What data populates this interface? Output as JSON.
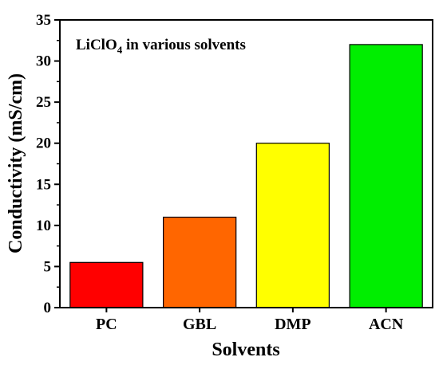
{
  "chart_data": {
    "type": "bar",
    "categories": [
      "PC",
      "GBL",
      "DMP",
      "ACN"
    ],
    "values": [
      5.5,
      11,
      20,
      32
    ],
    "colors": [
      "#ff0000",
      "#ff6600",
      "#ffff00",
      "#00ee00"
    ],
    "bar_edge_color": "#000000",
    "title": "",
    "annotation": {
      "text_main": "LiClO",
      "text_sub": "4",
      "text_rest": " in various solvents"
    },
    "xlabel": "Solvents",
    "ylabel": "Conductivity (mS/cm)",
    "ylim": [
      0,
      35
    ],
    "yticks": [
      "0",
      "5",
      "10",
      "15",
      "20",
      "25",
      "30",
      "35"
    ],
    "grid": false,
    "legend": "none"
  }
}
